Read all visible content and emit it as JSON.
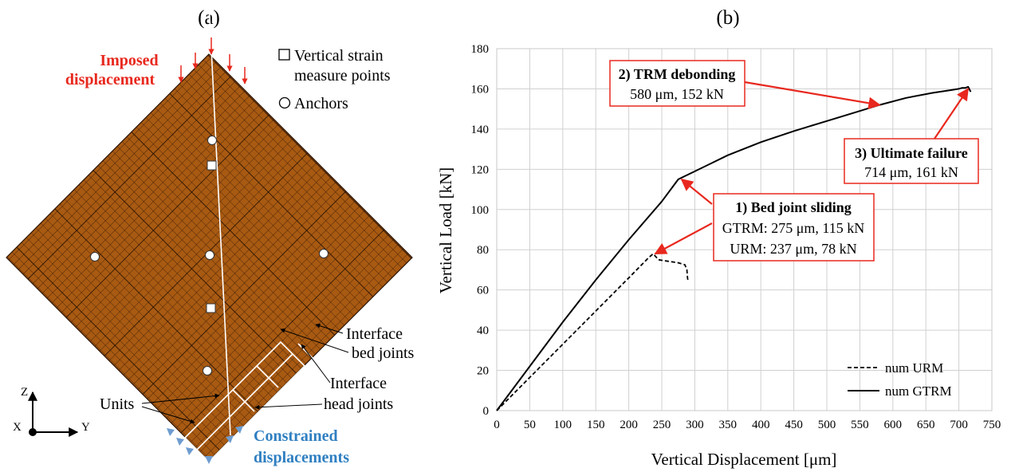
{
  "panel_a": {
    "label": "(a)",
    "imposed_line1": "Imposed",
    "imposed_line2": "displacement",
    "legend_square_line1": "Vertical strain",
    "legend_square_line2": "measure points",
    "legend_circle": "Anchors",
    "interface_bed_line1": "Interface",
    "interface_bed_line2": "bed joints",
    "interface_head_line1": "Interface",
    "interface_head_line2": "head joints",
    "units_label": "Units",
    "constrained_line1": "Constrained",
    "constrained_line2": "displacements",
    "axis_z": "Z",
    "axis_x": "X",
    "axis_y": "Y",
    "colors": {
      "brick": "#a85a12",
      "grid": "#3a1a04",
      "imposed": "#e8281e",
      "constrained": "#2f7fc1",
      "support": "#6e9ccf"
    }
  },
  "chart_data": {
    "type": "line",
    "panel_label": "(b)",
    "xlabel": "Vertical Displacement [μm]",
    "ylabel": "Vertical Load [kN]",
    "xlim": [
      0,
      750
    ],
    "ylim": [
      0,
      180
    ],
    "xticks": [
      0,
      50,
      100,
      150,
      200,
      250,
      300,
      350,
      400,
      450,
      500,
      550,
      600,
      650,
      700,
      750
    ],
    "yticks": [
      0,
      20,
      40,
      60,
      80,
      100,
      120,
      140,
      160,
      180
    ],
    "grid": true,
    "legend_position": "bottom-right",
    "series": [
      {
        "name": "num URM",
        "style": "dashed",
        "x": [
          0,
          50,
          100,
          150,
          200,
          230,
          237,
          245,
          255,
          275,
          285,
          288,
          289,
          290
        ],
        "y": [
          0,
          16.5,
          33,
          49.5,
          66,
          76,
          78,
          75,
          74.5,
          73.5,
          72.5,
          70,
          66,
          64
        ]
      },
      {
        "name": "num GTRM",
        "style": "solid",
        "x": [
          0,
          50,
          100,
          150,
          200,
          250,
          275,
          300,
          350,
          400,
          450,
          500,
          550,
          580,
          620,
          660,
          690,
          700,
          705,
          710,
          714,
          718
        ],
        "y": [
          0,
          22,
          44,
          65,
          85,
          104,
          115,
          119,
          127,
          133.5,
          139,
          144,
          149,
          152,
          155.5,
          158,
          159.5,
          160,
          160.5,
          160.5,
          161,
          158.5
        ]
      }
    ],
    "annotations": [
      {
        "id": "bed",
        "title": "1) Bed joint sliding",
        "line1": "GTRM: 275 μm, 115 kN",
        "line2": "URM: 237 μm, 78 kN"
      },
      {
        "id": "trm",
        "title": "2) TRM debonding",
        "line1": "580 μm, 152 kN"
      },
      {
        "id": "ult",
        "title": "3) Ultimate failure",
        "line1": "714 μm, 161 kN"
      }
    ],
    "colors": {
      "annotation_border": "#e8281e",
      "arrow": "#e8281e",
      "grid": "#d0d0d0",
      "line": "#000000"
    }
  }
}
